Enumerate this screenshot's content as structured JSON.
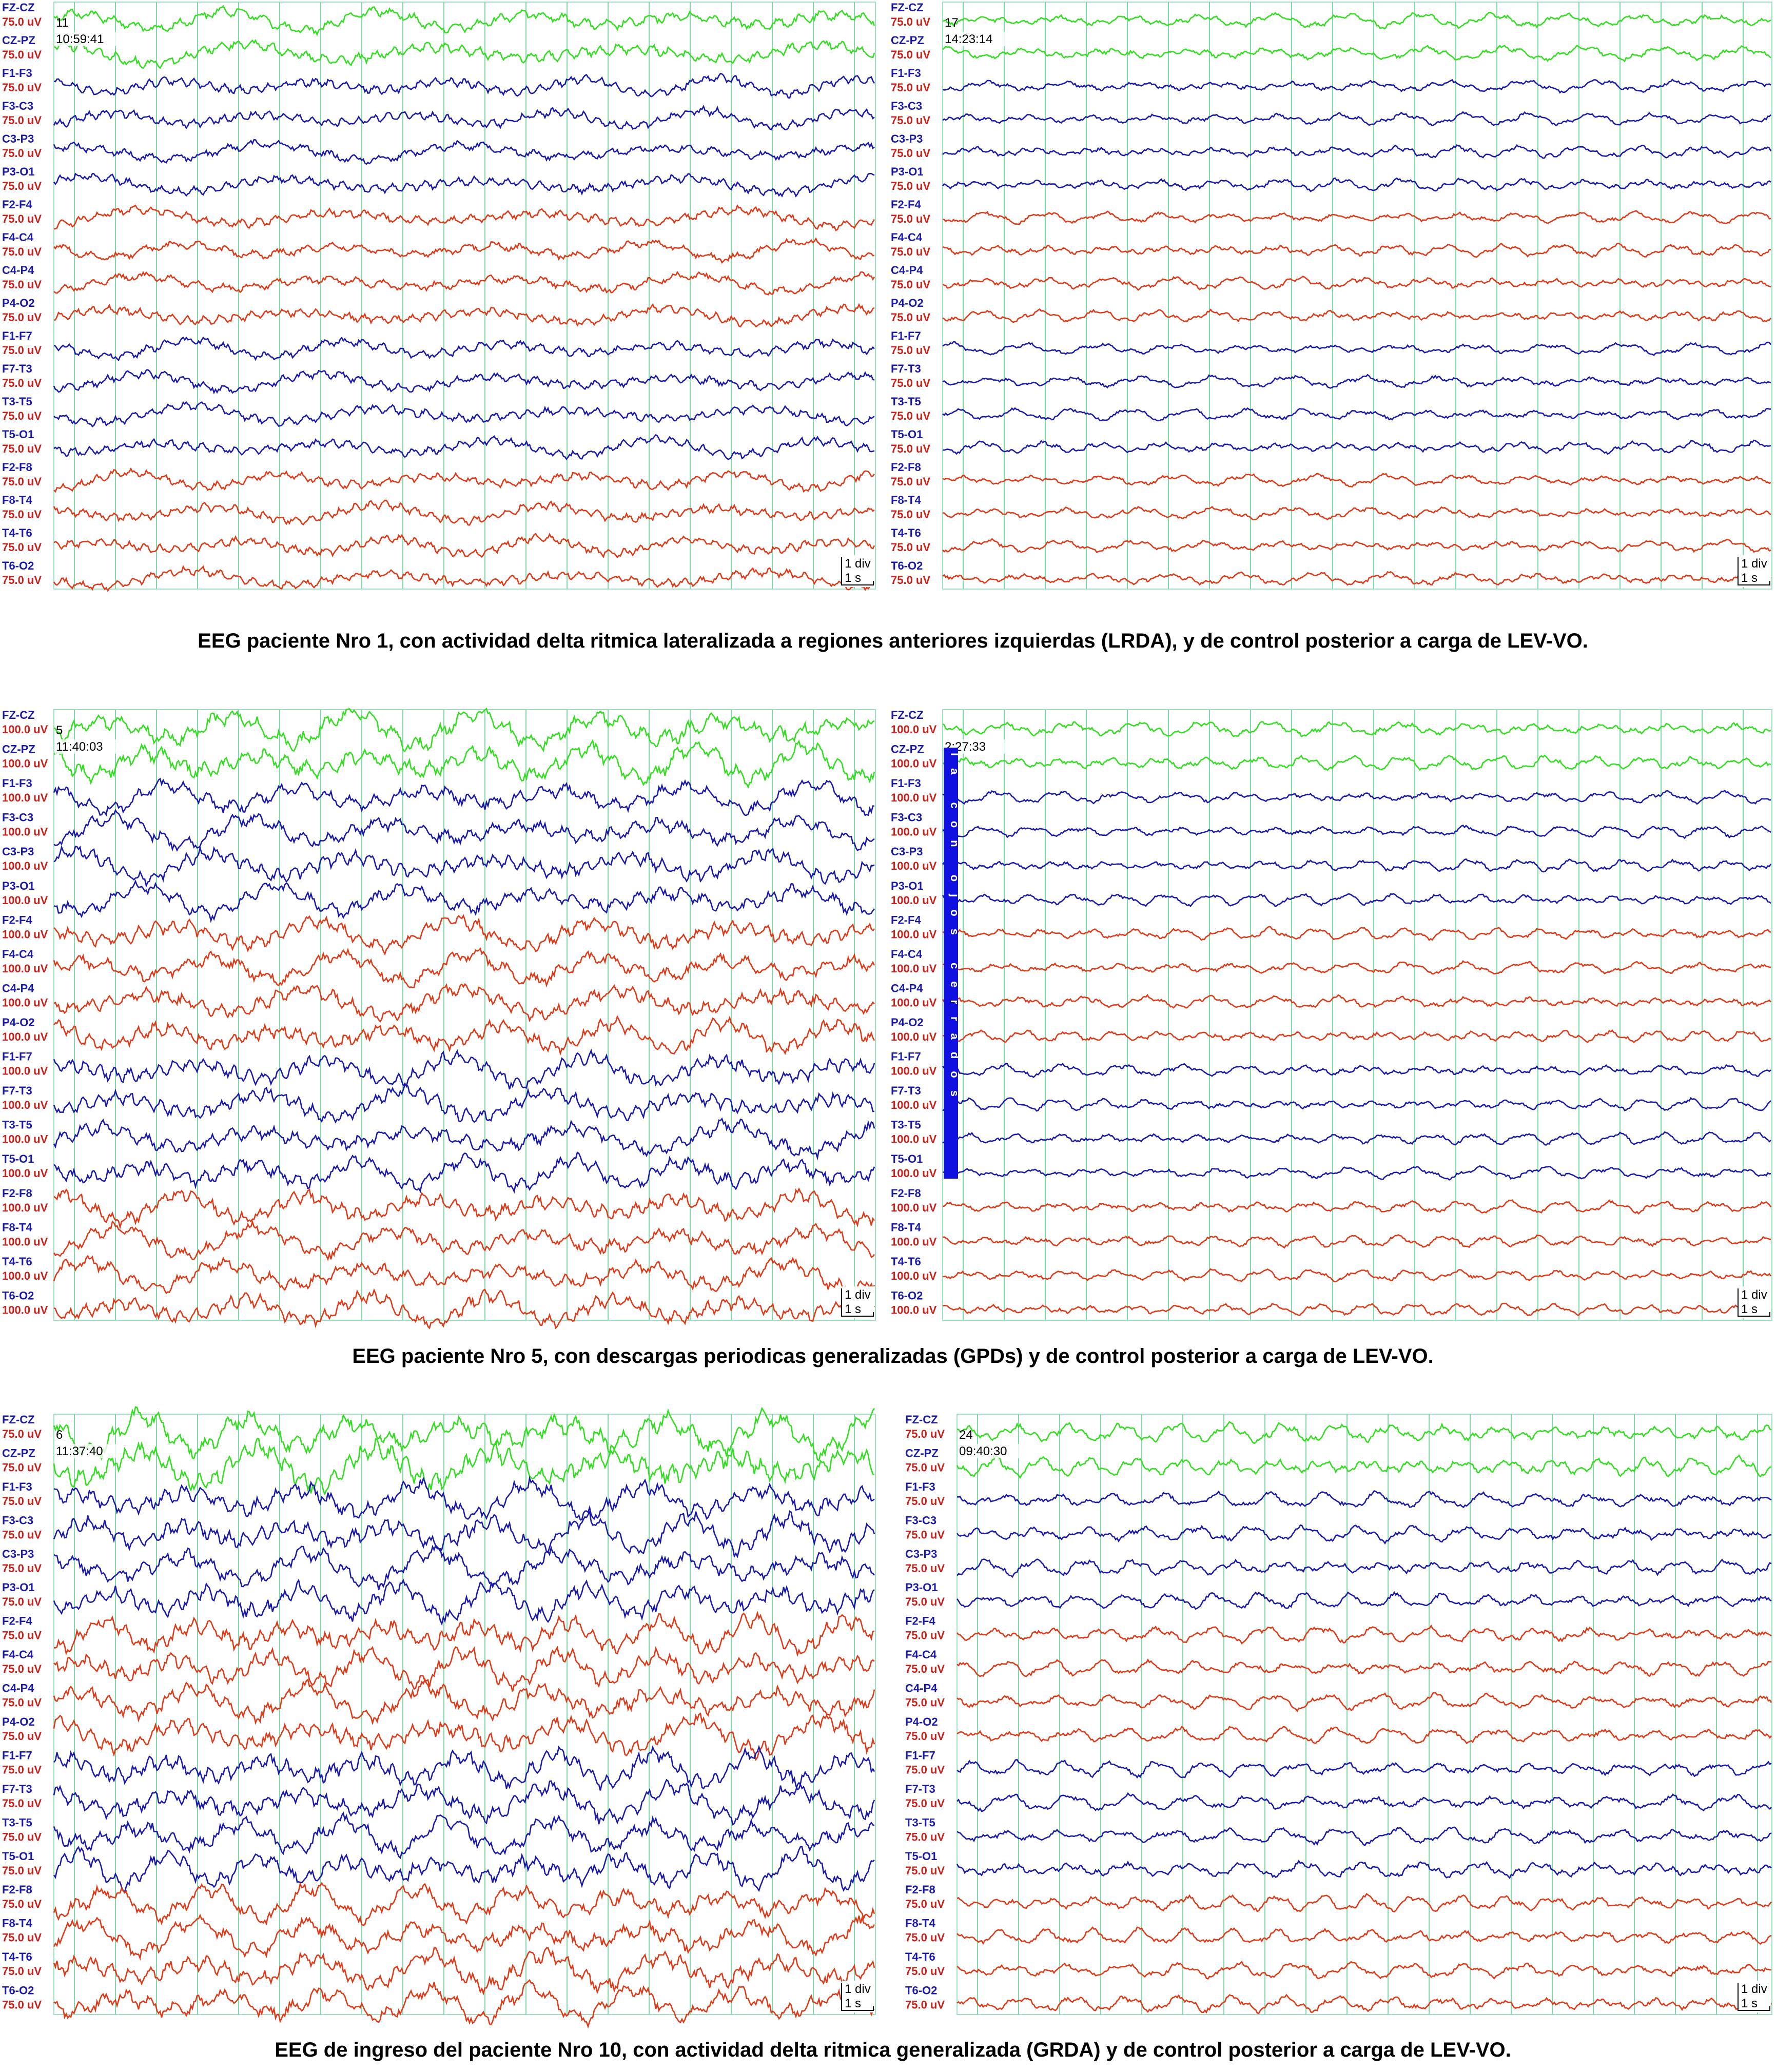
{
  "channels": [
    "FZ-CZ",
    "CZ-PZ",
    "F1-F3",
    "F3-C3",
    "C3-P3",
    "P3-O1",
    "F2-F4",
    "F4-C4",
    "C4-P4",
    "P4-O2",
    "F1-F7",
    "F7-T3",
    "T3-T5",
    "T5-O1",
    "F2-F8",
    "F8-T4",
    "T4-T6",
    "T6-O2"
  ],
  "scale": {
    "div": "1 div",
    "time": "1 s"
  },
  "figures": [
    {
      "panels": [
        {
          "page": "11",
          "time": "10:59:41",
          "sensitivity": "75.0 uV"
        },
        {
          "page": "17",
          "time": "14:23:14",
          "sensitivity": "75.0 uV"
        }
      ],
      "caption": "EEG paciente Nro 1, con actividad delta  ritmica lateralizada a regiones anteriores izquierdas (LRDA), y de control posterior a carga de LEV-VO."
    },
    {
      "panels": [
        {
          "page": "5",
          "time": "11:40:03",
          "sensitivity": "100.0 uV"
        },
        {
          "time": "2:27:33",
          "sensitivity": "100.0 uV",
          "annotation": "la con ojos cerrados"
        }
      ],
      "caption": "EEG paciente Nro 5, con descargas periodicas generalizadas (GPDs) y de control posterior a carga de LEV-VO."
    },
    {
      "panels": [
        {
          "page": "6",
          "time": "11:37:40",
          "sensitivity": "75.0 uV"
        },
        {
          "page": "24",
          "time": "09:40:30",
          "sensitivity": "75.0 uV"
        }
      ],
      "caption": "EEG de ingreso del paciente Nro 10, con actividad delta ritmica generalizada (GRDA) y de control posterior a carga de LEV-VO."
    }
  ]
}
